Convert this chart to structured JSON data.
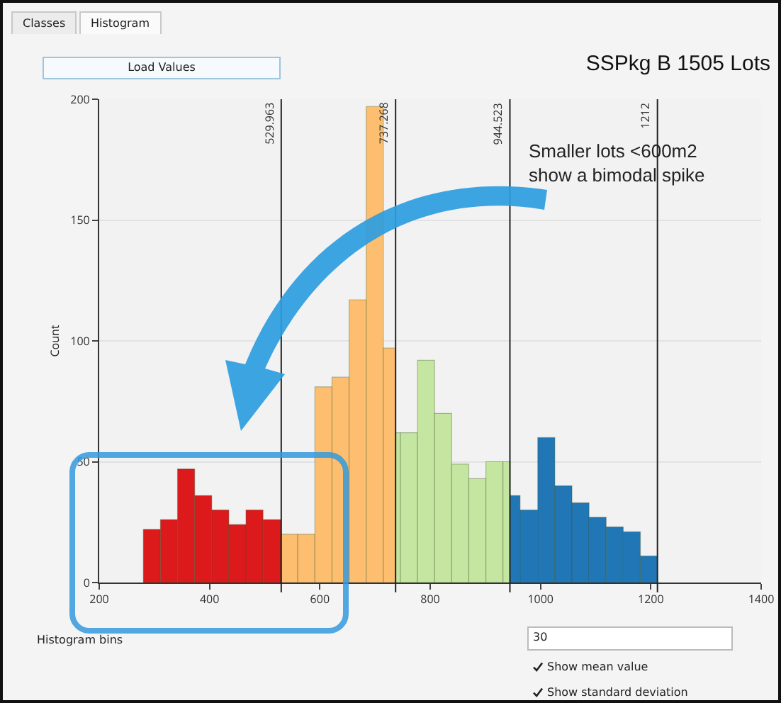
{
  "chart_data": {
    "type": "histogram",
    "title": "SSPkg B 1505 Lots",
    "ylabel": "Count",
    "bins": [
      280,
      311,
      342,
      373,
      404,
      435,
      466,
      497,
      529,
      560,
      591,
      622,
      653,
      684,
      715,
      737,
      746,
      777,
      808,
      839,
      870,
      901,
      932,
      945,
      963,
      995,
      1026,
      1057,
      1088,
      1119,
      1150,
      1181,
      1212
    ],
    "values": [
      22,
      26,
      47,
      36,
      30,
      24,
      30,
      26,
      20,
      20,
      81,
      85,
      117,
      197,
      97,
      62,
      62,
      92,
      70,
      49,
      43,
      50,
      50,
      36,
      30,
      60,
      40,
      33,
      27,
      23,
      21,
      11
    ],
    "colors": [
      "#dc1a1c",
      "#dc1a1c",
      "#dc1a1c",
      "#dc1a1c",
      "#dc1a1c",
      "#dc1a1c",
      "#dc1a1c",
      "#dc1a1c",
      "#fdbf6f",
      "#fdbf6f",
      "#fdbf6f",
      "#fdbf6f",
      "#fdbf6f",
      "#fdbf6f",
      "#fdbf6f",
      "#c4e6a0",
      "#c4e6a0",
      "#c4e6a0",
      "#c4e6a0",
      "#c4e6a0",
      "#c4e6a0",
      "#c4e6a0",
      "#c4e6a0",
      "#2177b5",
      "#2177b5",
      "#2177b5",
      "#2177b5",
      "#2177b5",
      "#2177b5",
      "#2177b5",
      "#2177b5",
      "#2177b5"
    ],
    "xlim": [
      200,
      1400
    ],
    "xticks": [
      200,
      400,
      600,
      800,
      1000,
      1200,
      1400
    ],
    "ylim": [
      0,
      200
    ],
    "yticks": [
      0,
      50,
      100,
      150,
      200
    ],
    "grid": "y",
    "ref_lines": [
      {
        "axis": "x",
        "value": 529.963,
        "label": "529.963",
        "color": "#222222"
      },
      {
        "axis": "x",
        "value": 737.268,
        "label": "737.268",
        "color": "#222222"
      },
      {
        "axis": "x",
        "value": 944.523,
        "label": "944.523",
        "color": "#222222"
      },
      {
        "axis": "x",
        "value": 1212,
        "label": "1212",
        "color": "#222222"
      }
    ],
    "annotations": [
      "Smaller lots <600m2\nshow a bimodal spike",
      "Classes",
      "Histogram",
      "Load Values",
      "Histogram bins",
      "30",
      "Show mean value",
      "Show standard deviation"
    ]
  }
}
